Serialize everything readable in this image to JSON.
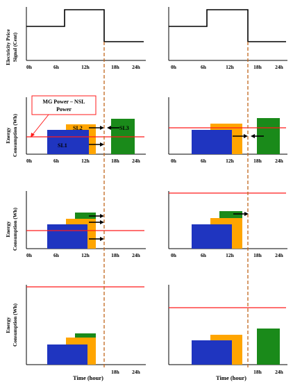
{
  "colors": {
    "sl1": "#1f35c0",
    "sl2": "#ffa500",
    "sl3": "#1a8a1a",
    "mg_line": "#ff1a1a",
    "schedule_divider": "#c0651a",
    "price_signal": "#000000",
    "axis": "#000000",
    "callout_border": "#ff1a1a"
  },
  "labels": {
    "price_ylabel_line1": "Electricity Price",
    "price_ylabel_line2": "Signal (Cent)",
    "energy_ylabel_line1": "Energy",
    "energy_ylabel_line2": "Consumption (Wh)",
    "xaxis_title": "Time (hour)",
    "callout_line1": "MG Power – NSL",
    "callout_line2": "Power",
    "sl1": "SL1",
    "sl2": "SL2",
    "sl3": "SL3"
  },
  "ticks": [
    "0h",
    "6h",
    "12h",
    "18h",
    "24h"
  ],
  "shift_time": "16h",
  "price_signal": {
    "times": [
      "0h",
      "7h",
      "7h",
      "16h",
      "16h",
      "24h"
    ],
    "levels": [
      "mid",
      "mid",
      "high",
      "high",
      "low",
      "low"
    ]
  },
  "scenarios": [
    {
      "id": "row2-left",
      "description_loads": "SL1 and SL2 before shift, SL3 after",
      "mg_line_level": 0.35,
      "loads": [
        {
          "name": "SL1",
          "start_h": 4,
          "end_h": 12,
          "height": 0.42
        },
        {
          "name": "SL2",
          "start_h": 8.5,
          "end_h": 13.5,
          "height": 0.55
        },
        {
          "name": "SL3",
          "start_h": 17,
          "end_h": 21.5,
          "height": 0.68
        }
      ]
    }
  ]
}
